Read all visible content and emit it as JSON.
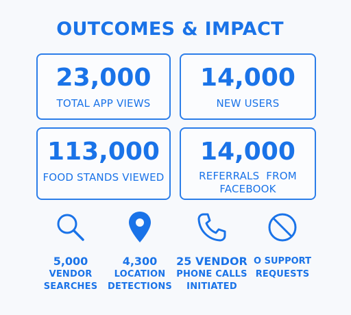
{
  "header": {
    "title": "OUTCOMES & IMPACT"
  },
  "cards": [
    {
      "value": "23,000",
      "label": "TOTAL APP VIEWS"
    },
    {
      "value": "14,000",
      "label": "NEW USERS"
    },
    {
      "value": "113,000",
      "label": "FOOD STANDS VIEWED"
    },
    {
      "value": "14,000",
      "label_line1": "REFERRALS  FROM",
      "label_line2": "FACEBOOK"
    }
  ],
  "stats": [
    {
      "icon": "search-icon",
      "value": "5,000",
      "label_line1": "VENDOR",
      "label_line2": "SEARCHES"
    },
    {
      "icon": "location-pin-icon",
      "value": "4,300",
      "label_line1": "LOCATION",
      "label_line2": "DETECTIONS"
    },
    {
      "icon": "phone-icon",
      "value": "25 VENDOR",
      "label_line1": "PHONE CALLS",
      "label_line2": "INITIATED"
    },
    {
      "icon": "no-symbol-icon",
      "value": "O SUPPORT",
      "label_line1": "REQUESTS",
      "label_line2": ""
    }
  ],
  "colors": {
    "accent": "#1a73e8",
    "border": "#2b7de9",
    "background": "#f7f9fc"
  }
}
